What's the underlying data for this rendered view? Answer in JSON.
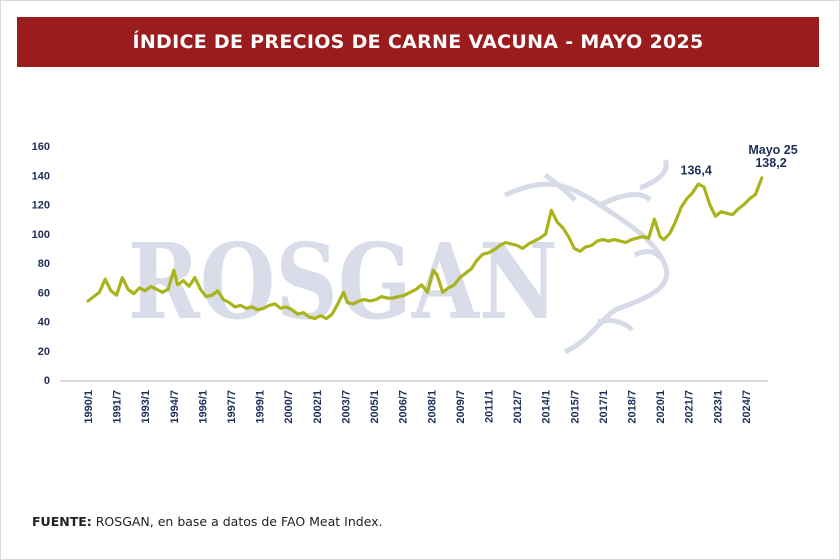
{
  "title": "ÍNDICE DE PRECIOS DE CARNE VACUNA - MAYO 2025",
  "source": {
    "label": "FUENTE:",
    "text": " ROSGAN, en base a datos de FAO Meat Index."
  },
  "watermark": "ROSGAN",
  "colors": {
    "title_bg": "#9b1c1c",
    "line": "#a9b41c",
    "axis_text": "#1f2f5a",
    "watermark": "#c9cfe0"
  },
  "chart_data": {
    "type": "line",
    "title": "ÍNDICE DE PRECIOS DE CARNE VACUNA - MAYO 2025",
    "xlabel": "",
    "ylabel": "",
    "ylim": [
      0,
      160
    ],
    "yticks": [
      0,
      20,
      40,
      60,
      80,
      100,
      120,
      140,
      160
    ],
    "grid": false,
    "xticks": [
      "1990/1",
      "1991/7",
      "1993/1",
      "1994/7",
      "1996/1",
      "1997/7",
      "1999/1",
      "2000/7",
      "2002/1",
      "2003/7",
      "2005/1",
      "2006/7",
      "2008/1",
      "2009/7",
      "2011/1",
      "2012/7",
      "2014/1",
      "2015/7",
      "2017/1",
      "2018/7",
      "2020/1",
      "2021/7",
      "2023/1",
      "2024/7"
    ],
    "series": [
      {
        "x": [
          1990.0,
          1990.3,
          1990.6,
          1990.9,
          1991.2,
          1991.5,
          1991.8,
          1992.1,
          1992.4,
          1992.7,
          1993.0,
          1993.3,
          1993.6,
          1993.9,
          1994.2,
          1994.5,
          1994.7,
          1995.0,
          1995.3,
          1995.6,
          1995.9,
          1996.2,
          1996.5,
          1996.8,
          1997.1,
          1997.4,
          1997.7,
          1998.0,
          1998.3,
          1998.6,
          1998.9,
          1999.2,
          1999.5,
          1999.8,
          2000.1,
          2000.4,
          2000.7,
          2001.0,
          2001.3,
          2001.6,
          2001.9,
          2002.2,
          2002.5,
          2002.8,
          2003.1,
          2003.4,
          2003.6,
          2003.9,
          2004.2,
          2004.5,
          2004.8,
          2005.1,
          2005.4,
          2005.7,
          2006.0,
          2006.3,
          2006.6,
          2006.9,
          2007.2,
          2007.5,
          2007.8,
          2008.1,
          2008.3,
          2008.6,
          2008.9,
          2009.2,
          2009.5,
          2009.8,
          2010.1,
          2010.4,
          2010.7,
          2011.0,
          2011.3,
          2011.6,
          2011.9,
          2012.2,
          2012.5,
          2012.8,
          2013.1,
          2013.4,
          2013.7,
          2014.0,
          2014.3,
          2014.6,
          2014.9,
          2015.2,
          2015.5,
          2015.8,
          2016.1,
          2016.4,
          2016.7,
          2017.0,
          2017.3,
          2017.6,
          2017.9,
          2018.2,
          2018.5,
          2018.8,
          2019.1,
          2019.4,
          2019.7,
          2020.0,
          2020.2,
          2020.5,
          2020.8,
          2021.1,
          2021.4,
          2021.7,
          2022.0,
          2022.3,
          2022.6,
          2022.9,
          2023.2,
          2023.5,
          2023.8,
          2024.1,
          2024.4,
          2024.7,
          2025.0,
          2025.33
        ],
        "values": [
          54,
          57,
          60,
          69,
          61,
          58,
          70,
          62,
          59,
          63,
          61,
          64,
          62,
          60,
          62,
          75,
          65,
          68,
          64,
          70,
          62,
          57,
          58,
          61,
          55,
          53,
          50,
          51,
          49,
          50,
          48,
          49,
          51,
          52,
          49,
          50,
          48,
          45,
          46,
          43,
          42,
          44,
          42,
          45,
          52,
          60,
          53,
          52,
          54,
          55,
          54,
          55,
          57,
          56,
          56,
          57,
          58,
          60,
          62,
          65,
          60,
          75,
          72,
          60,
          63,
          65,
          70,
          73,
          76,
          82,
          86,
          87,
          89,
          92,
          94,
          93,
          92,
          90,
          93,
          95,
          97,
          100,
          116,
          108,
          104,
          98,
          90,
          88,
          91,
          92,
          95,
          96,
          95,
          96,
          95,
          94,
          96,
          97,
          98,
          97,
          110,
          98,
          96,
          100,
          108,
          118,
          124,
          128,
          134,
          132,
          120,
          112,
          115,
          114,
          113,
          117,
          120,
          124,
          127,
          138.2
        ]
      }
    ],
    "annotations": [
      {
        "label": "136,4",
        "x": 2022.1,
        "y": 136.4
      },
      {
        "label": "Mayo 25",
        "x": 2025.33,
        "y": 138.2
      },
      {
        "label": "138,2",
        "x": 2025.33,
        "y": 138.2
      }
    ]
  }
}
